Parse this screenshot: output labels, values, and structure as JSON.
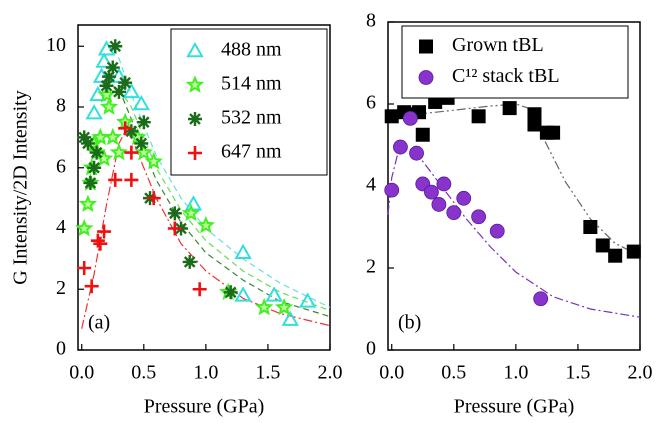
{
  "chart_data": [
    {
      "type": "scatter",
      "xlabel": "Pressure (GPa)",
      "ylabel": "G Intensity/2D Intensity",
      "annotation": "(a)",
      "xlim": [
        -0.03,
        2.0
      ],
      "ylim": [
        0,
        10.7
      ],
      "xticks": [
        {
          "value": 0,
          "label": "0.0"
        },
        {
          "value": 0.5,
          "label": "0.5"
        },
        {
          "value": 1,
          "label": "1.0"
        },
        {
          "value": 1.5,
          "label": "1.5"
        },
        {
          "value": 2,
          "label": "2.0"
        }
      ],
      "yticks": [
        0,
        2,
        4,
        6,
        8,
        10
      ],
      "legend": "upper right",
      "series": [
        {
          "name": "488 nm",
          "color": "#33dede",
          "marker": "triangle",
          "x": [
            0.1,
            0.13,
            0.16,
            0.18,
            0.2,
            0.3,
            0.4,
            0.48,
            0.9,
            1.3,
            1.3,
            1.55,
            1.68,
            1.82
          ],
          "values": [
            7.8,
            8.4,
            9.0,
            9.5,
            9.9,
            9.0,
            8.5,
            8.1,
            4.8,
            3.2,
            1.8,
            1.8,
            1.0,
            1.6
          ]
        },
        {
          "name": "514 nm",
          "color": "#44ee22",
          "marker": "star",
          "x": [
            0.02,
            0.05,
            0.07,
            0.08,
            0.1,
            0.12,
            0.15,
            0.18,
            0.2,
            0.22,
            0.25,
            0.3,
            0.35,
            0.45,
            0.5,
            0.58,
            0.88,
            1.0,
            1.18,
            1.47,
            1.63
          ],
          "values": [
            4.0,
            4.8,
            5.5,
            6.0,
            6.8,
            6.5,
            7.0,
            6.3,
            8.4,
            8.0,
            7.0,
            6.5,
            7.5,
            7.0,
            6.5,
            6.2,
            4.5,
            4.1,
            1.9,
            1.4,
            1.4
          ]
        },
        {
          "name": "532 nm",
          "color": "#1a6b1a",
          "marker": "asterisk",
          "x": [
            0.02,
            0.05,
            0.07,
            0.1,
            0.12,
            0.2,
            0.22,
            0.25,
            0.27,
            0.3,
            0.35,
            0.4,
            0.48,
            0.5,
            0.55,
            0.75,
            0.8,
            0.87,
            1.2
          ],
          "values": [
            7.0,
            6.8,
            5.5,
            6.0,
            6.5,
            8.7,
            9.0,
            9.3,
            10.0,
            8.5,
            8.8,
            7.2,
            6.8,
            7.5,
            5.0,
            4.5,
            4.0,
            2.9,
            1.9
          ]
        },
        {
          "name": "647 nm",
          "color": "#ee1111",
          "marker": "plus",
          "x": [
            0.02,
            0.08,
            0.13,
            0.15,
            0.18,
            0.27,
            0.35,
            0.4,
            0.4,
            0.58,
            0.75,
            0.95
          ],
          "values": [
            2.7,
            2.1,
            3.6,
            3.5,
            3.9,
            5.6,
            7.3,
            5.6,
            6.5,
            5.0,
            4.0,
            2.0
          ]
        }
      ],
      "fits": [
        {
          "color": "#66e0e0",
          "style": "dash",
          "x": [
            0.25,
            0.3,
            0.4,
            0.6,
            0.8,
            1.0,
            1.3,
            1.6,
            2.0
          ],
          "values": [
            9.9,
            9.6,
            8.4,
            6.4,
            5.0,
            4.0,
            3.0,
            2.2,
            1.4
          ]
        },
        {
          "color": "#66dd55",
          "style": "dash",
          "x": [
            0.3,
            0.4,
            0.6,
            0.8,
            1.0,
            1.3,
            1.6,
            2.0
          ],
          "values": [
            8.6,
            8.0,
            6.0,
            4.6,
            3.6,
            2.6,
            1.9,
            1.3
          ]
        },
        {
          "color": "#338833",
          "style": "dash",
          "x": [
            0.3,
            0.4,
            0.6,
            0.8,
            1.0,
            1.3,
            1.6,
            2.0
          ],
          "values": [
            8.6,
            7.6,
            5.6,
            4.2,
            3.2,
            2.3,
            1.6,
            1.1
          ]
        },
        {
          "color": "#ee3333",
          "style": "dashdot",
          "x": [
            0,
            0.1,
            0.2,
            0.3,
            0.35,
            0.4,
            0.6,
            0.8,
            1.0,
            1.3,
            1.6,
            2.0
          ],
          "values": [
            0.7,
            2.5,
            4.8,
            6.8,
            7.2,
            7.0,
            5.0,
            3.5,
            2.6,
            1.7,
            1.2,
            0.8
          ]
        }
      ]
    },
    {
      "type": "scatter",
      "xlabel": "Pressure (GPa)",
      "annotation": "(b)",
      "xlim": [
        -0.03,
        2.0
      ],
      "ylim": [
        0,
        8
      ],
      "xticks": [
        {
          "value": 0,
          "label": "0.0"
        },
        {
          "value": 0.5,
          "label": "0.5"
        },
        {
          "value": 1,
          "label": "1.0"
        },
        {
          "value": 1.5,
          "label": "1.5"
        },
        {
          "value": 2,
          "label": "2.0"
        }
      ],
      "yticks": [
        0,
        2,
        4,
        6,
        8
      ],
      "legend": "upper left",
      "series": [
        {
          "name": "Grown tBL",
          "color": "#000000",
          "marker": "square",
          "x": [
            0.0,
            0.1,
            0.15,
            0.22,
            0.25,
            0.35,
            0.45,
            0.7,
            0.95,
            1.15,
            1.15,
            1.25,
            1.3,
            1.6,
            1.7,
            1.8,
            1.95
          ],
          "values": [
            5.7,
            5.8,
            5.75,
            5.8,
            5.25,
            6.05,
            6.15,
            5.7,
            5.9,
            5.75,
            5.5,
            5.3,
            5.3,
            3.0,
            2.55,
            2.3,
            2.4
          ]
        },
        {
          "name": "C¹² stack tBL",
          "color": "#8833cc",
          "marker": "circle",
          "x": [
            0.0,
            0.07,
            0.15,
            0.2,
            0.25,
            0.32,
            0.38,
            0.42,
            0.5,
            0.58,
            0.7,
            0.85,
            1.2
          ],
          "values": [
            3.9,
            4.95,
            5.65,
            4.8,
            4.05,
            3.85,
            3.55,
            4.05,
            3.35,
            3.7,
            3.25,
            2.9,
            1.25
          ]
        }
      ],
      "fits": [
        {
          "color": "#666666",
          "style": "dashdotdot",
          "x": [
            0,
            0.2,
            0.5,
            0.8,
            1.0,
            1.1,
            1.2,
            1.4,
            1.6,
            1.8,
            2.0
          ],
          "values": [
            5.6,
            5.75,
            5.85,
            5.95,
            6.0,
            5.9,
            5.3,
            4.1,
            3.2,
            2.6,
            2.3
          ]
        },
        {
          "color": "#7733bb",
          "style": "dashdot",
          "x": [
            -0.03,
            0,
            0.05,
            0.1,
            0.2,
            0.4,
            0.6,
            0.8,
            1.0,
            1.3,
            1.6,
            2.0
          ],
          "values": [
            3.3,
            4.2,
            4.8,
            5.0,
            4.8,
            4.0,
            3.2,
            2.5,
            1.9,
            1.3,
            1.0,
            0.8
          ]
        }
      ]
    }
  ]
}
